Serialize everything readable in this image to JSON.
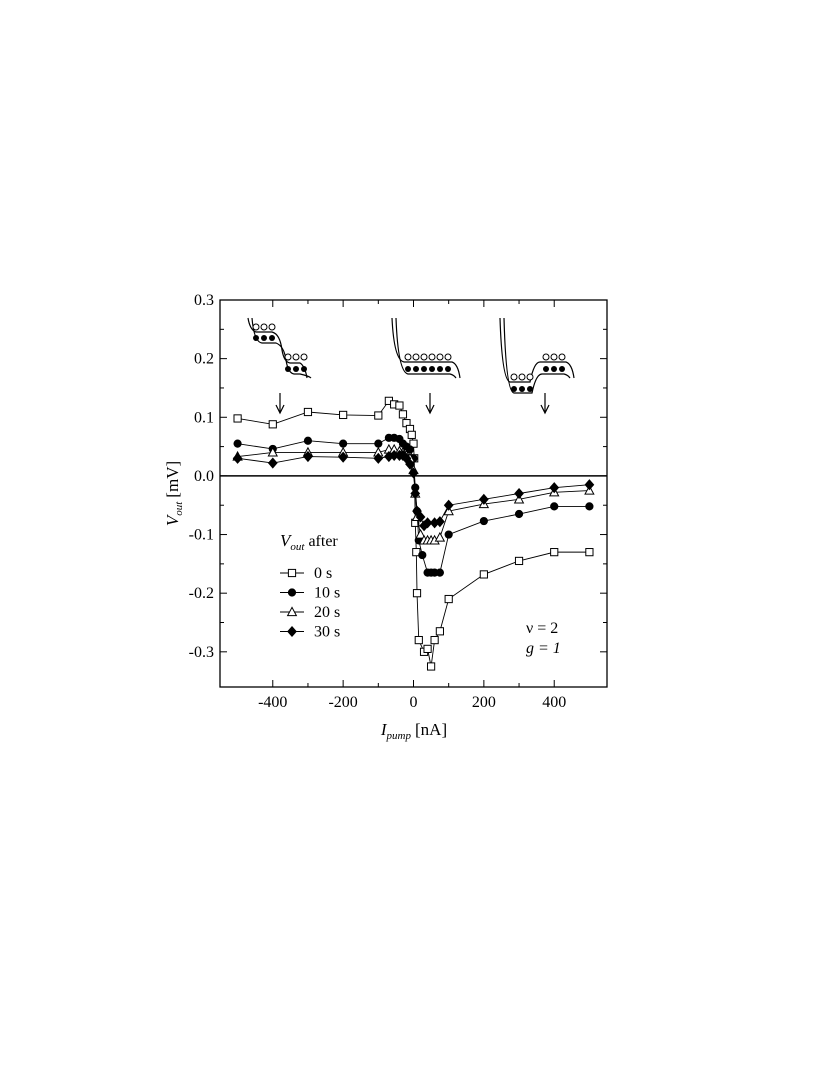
{
  "chart_data": {
    "type": "line",
    "x_label": {
      "symbol": "I",
      "subscript": "pump",
      "unit": "[nA]"
    },
    "y_label": {
      "symbol": "V",
      "subscript": "out",
      "unit": "[mV]"
    },
    "legend_title": {
      "symbol": "V",
      "subscript": "out",
      "text": "after"
    },
    "annotations": [
      "ν = 2",
      "g = 1"
    ],
    "xlim": [
      -550,
      550
    ],
    "ylim": [
      -0.36,
      0.3
    ],
    "xticks": [
      -400,
      -200,
      0,
      200,
      400
    ],
    "yticks": [
      0.3,
      0.2,
      0.1,
      {
        "value": 0,
        "label": "0.0"
      },
      -0.1,
      -0.2,
      -0.3
    ],
    "series": [
      {
        "name": "0 s",
        "marker": "open-square",
        "color": "#000000",
        "x": [
          -500,
          -400,
          -300,
          -200,
          -100,
          -70,
          -55,
          -40,
          -30,
          -20,
          -10,
          -5,
          0,
          2,
          5,
          8,
          10,
          15,
          30,
          40,
          50,
          60,
          75,
          100,
          200,
          300,
          400,
          500
        ],
        "values": [
          0.098,
          0.088,
          0.109,
          0.104,
          0.103,
          0.128,
          0.122,
          0.12,
          0.105,
          0.09,
          0.08,
          0.07,
          0.055,
          0.03,
          -0.08,
          -0.13,
          -0.2,
          -0.28,
          -0.3,
          -0.295,
          -0.325,
          -0.28,
          -0.265,
          -0.21,
          -0.168,
          -0.145,
          -0.13,
          -0.13
        ]
      },
      {
        "name": "10 s",
        "marker": "filled-circle",
        "color": "#000000",
        "x": [
          -500,
          -400,
          -300,
          -200,
          -100,
          -70,
          -55,
          -40,
          -30,
          -20,
          -10,
          0,
          5,
          10,
          15,
          25,
          40,
          50,
          60,
          75,
          100,
          200,
          300,
          400,
          500
        ],
        "values": [
          0.055,
          0.046,
          0.06,
          0.055,
          0.055,
          0.065,
          0.065,
          0.063,
          0.055,
          0.05,
          0.045,
          0.03,
          -0.02,
          -0.06,
          -0.11,
          -0.135,
          -0.165,
          -0.165,
          -0.165,
          -0.165,
          -0.1,
          -0.077,
          -0.065,
          -0.052,
          -0.052
        ]
      },
      {
        "name": "20 s",
        "marker": "open-triangle",
        "color": "#000000",
        "x": [
          -500,
          -400,
          -300,
          -200,
          -100,
          -70,
          -55,
          -40,
          -30,
          -20,
          -10,
          0,
          5,
          10,
          20,
          30,
          40,
          50,
          60,
          75,
          100,
          200,
          300,
          400,
          500
        ],
        "values": [
          0.033,
          0.04,
          0.04,
          0.04,
          0.04,
          0.045,
          0.045,
          0.042,
          0.04,
          0.035,
          0.03,
          0.01,
          -0.03,
          -0.07,
          -0.1,
          -0.11,
          -0.11,
          -0.11,
          -0.11,
          -0.105,
          -0.06,
          -0.048,
          -0.04,
          -0.028,
          -0.025
        ]
      },
      {
        "name": "30 s",
        "marker": "filled-diamond",
        "color": "#000000",
        "x": [
          -500,
          -400,
          -300,
          -200,
          -100,
          -70,
          -55,
          -40,
          -30,
          -20,
          -10,
          0,
          5,
          10,
          20,
          30,
          40,
          60,
          75,
          100,
          200,
          300,
          400,
          500
        ],
        "values": [
          0.03,
          0.022,
          0.033,
          0.032,
          0.03,
          0.033,
          0.035,
          0.035,
          0.035,
          0.03,
          0.02,
          0.005,
          -0.03,
          -0.06,
          -0.07,
          -0.085,
          -0.08,
          -0.08,
          -0.078,
          -0.05,
          -0.04,
          -0.03,
          -0.02,
          -0.015
        ]
      }
    ]
  }
}
